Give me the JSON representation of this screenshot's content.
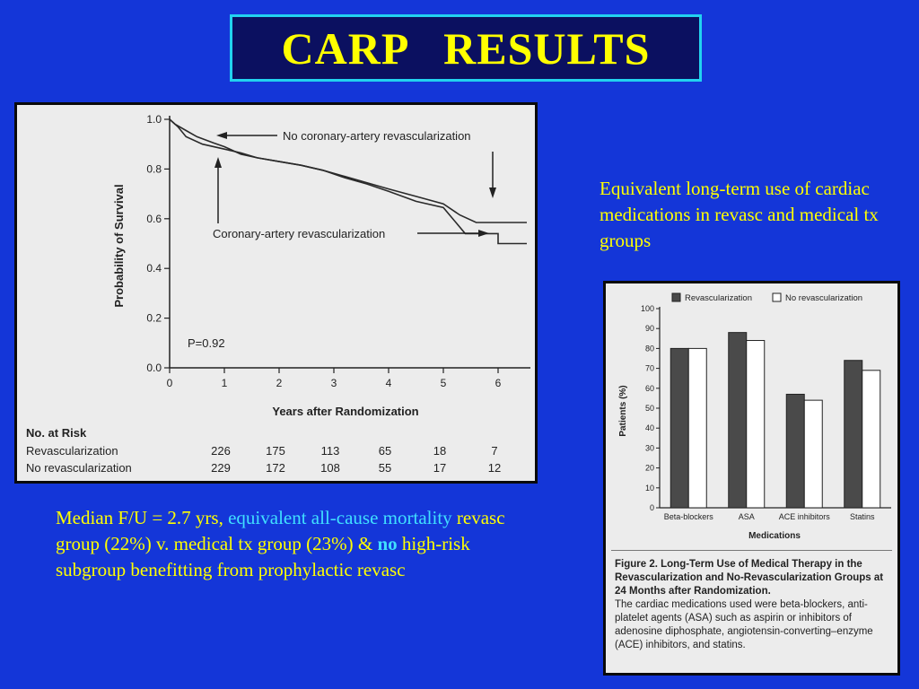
{
  "slide": {
    "title": "CARP   RESULTS",
    "side_note": "Equivalent long-term use of cardiac medications in revasc and medical tx groups",
    "summary": {
      "part1": "Median F/U = 2.7 yrs,  ",
      "part2": "equivalent all-cause mortality",
      "part3": " revasc group (22%) v. medical tx group (23%)  &  ",
      "part4": "no",
      "part5": " high-risk subgroup benefitting from prophylactic revasc"
    }
  },
  "chart_data": [
    {
      "type": "line",
      "ylabel": "Probability of Survival",
      "xlabel": "Years after Randomization",
      "xlim": [
        0,
        6.4
      ],
      "ylim": [
        0,
        1.0
      ],
      "x_ticks": [
        "0",
        "1",
        "2",
        "3",
        "4",
        "5",
        "6"
      ],
      "y_ticks": [
        "0.0",
        "0.2",
        "0.4",
        "0.6",
        "0.8",
        "1.0"
      ],
      "annotation_pvalue": "P=0.92",
      "series": [
        {
          "name": "No coronary-artery revascularization",
          "points": [
            [
              0,
              1.0
            ],
            [
              0.1,
              0.98
            ],
            [
              0.3,
              0.955
            ],
            [
              0.5,
              0.93
            ],
            [
              0.8,
              0.905
            ],
            [
              1.0,
              0.89
            ],
            [
              1.3,
              0.86
            ],
            [
              1.6,
              0.845
            ],
            [
              2.0,
              0.83
            ],
            [
              2.4,
              0.815
            ],
            [
              2.8,
              0.795
            ],
            [
              3.2,
              0.77
            ],
            [
              3.6,
              0.745
            ],
            [
              4.0,
              0.72
            ],
            [
              4.5,
              0.69
            ],
            [
              5.0,
              0.66
            ],
            [
              5.3,
              0.615
            ],
            [
              5.6,
              0.585
            ],
            [
              6.0,
              0.585
            ],
            [
              6.6,
              0.585
            ]
          ]
        },
        {
          "name": "Coronary-artery revascularization",
          "points": [
            [
              0,
              1.0
            ],
            [
              0.15,
              0.97
            ],
            [
              0.3,
              0.93
            ],
            [
              0.6,
              0.9
            ],
            [
              1.0,
              0.88
            ],
            [
              1.3,
              0.865
            ],
            [
              1.6,
              0.845
            ],
            [
              2.0,
              0.83
            ],
            [
              2.4,
              0.815
            ],
            [
              2.8,
              0.795
            ],
            [
              3.2,
              0.765
            ],
            [
              3.6,
              0.74
            ],
            [
              4.0,
              0.71
            ],
            [
              4.5,
              0.67
            ],
            [
              5.0,
              0.645
            ],
            [
              5.4,
              0.54
            ],
            [
              6.0,
              0.54
            ],
            [
              6.0,
              0.5
            ],
            [
              6.6,
              0.5
            ]
          ]
        }
      ],
      "risk_table": {
        "header": "No. at Risk",
        "rows": [
          {
            "label": "Revascularization",
            "values": [
              "226",
              "175",
              "113",
              "65",
              "18",
              "7"
            ]
          },
          {
            "label": "No revascularization",
            "values": [
              "229",
              "172",
              "108",
              "55",
              "17",
              "12"
            ]
          }
        ]
      }
    },
    {
      "type": "bar",
      "ylabel": "Patients (%)",
      "xlabel": "Medications",
      "ylim": [
        0,
        100
      ],
      "y_ticks": [
        "0",
        "10",
        "20",
        "30",
        "40",
        "50",
        "60",
        "70",
        "80",
        "90",
        "100"
      ],
      "categories": [
        "Beta-blockers",
        "ASA",
        "ACE inhibitors",
        "Statins"
      ],
      "legend_placement": "top",
      "series": [
        {
          "name": "Revascularization",
          "values": [
            80,
            88,
            57,
            74
          ],
          "color": "#4a4a4a"
        },
        {
          "name": "No revascularization",
          "values": [
            80,
            84,
            54,
            69
          ],
          "color": "#ffffff"
        }
      ],
      "caption": {
        "title": "Figure 2. Long-Term Use of Medical Therapy in the Revascularization and No-Revascularization Groups at 24 Months after Randomization.",
        "body": "The cardiac medications used were beta-blockers, anti-platelet agents (ASA) such as aspirin or inhibitors of adenosine diphosphate, angiotensin-converting–enzyme (ACE) inhibitors, and statins."
      }
    }
  ]
}
